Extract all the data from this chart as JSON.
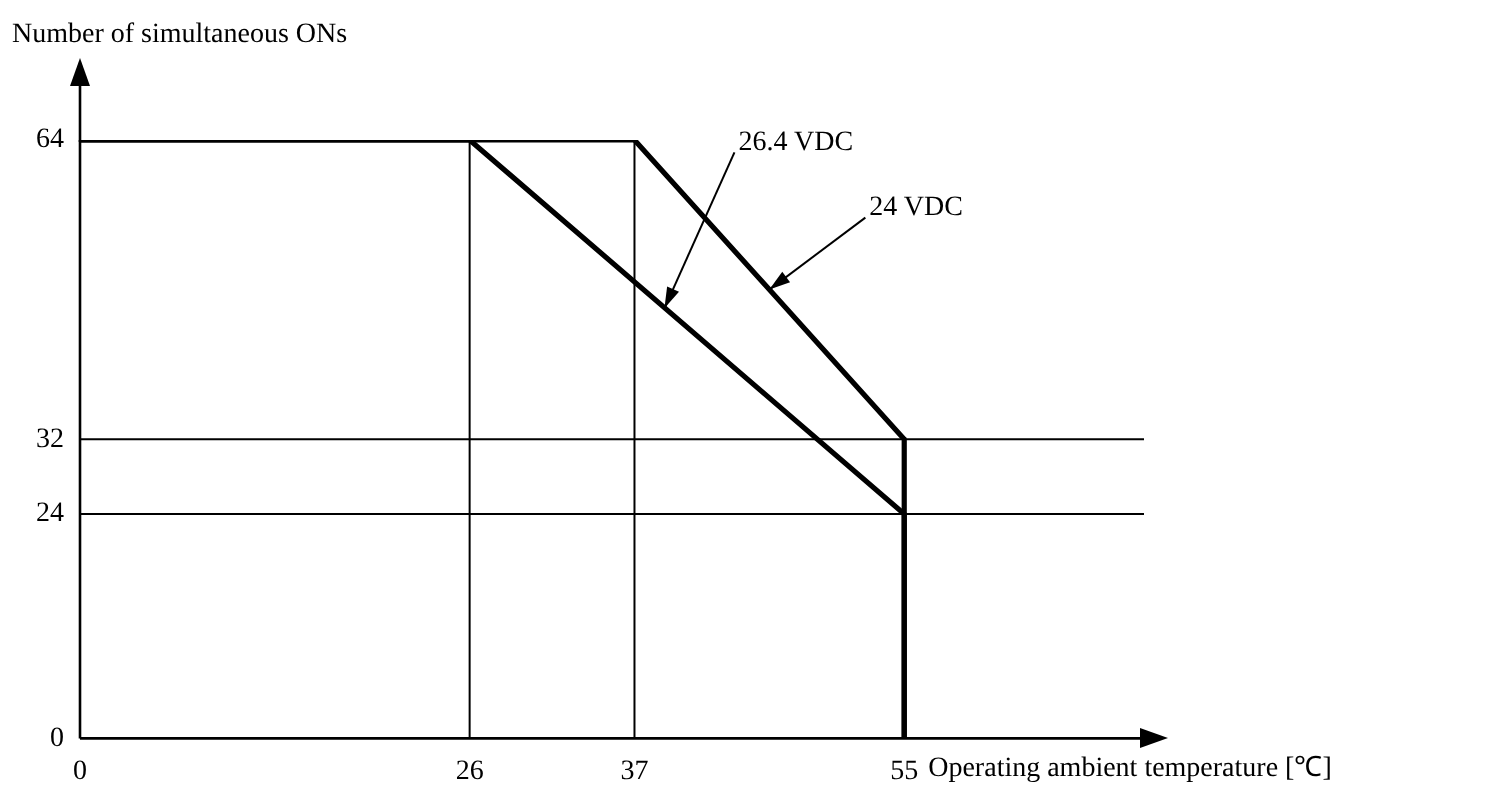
{
  "chart_data": {
    "type": "line",
    "ylabel": "Number of simultaneous ONs",
    "xlabel": "Operating ambient temperature [℃]",
    "xlim": [
      0,
      71
    ],
    "xticks": [
      0,
      26,
      37,
      55
    ],
    "ylim": [
      0,
      64
    ],
    "yticks": [
      0,
      24,
      32,
      64
    ],
    "grid": false,
    "legend": false,
    "marker": "none",
    "line_style": "solid",
    "series": [
      {
        "color": "#000000",
        "x": [
          0,
          37,
          55,
          55
        ],
        "values": [
          64,
          64,
          32,
          0
        ]
      },
      {
        "color": "#000000",
        "x": [
          0,
          26,
          55,
          55
        ],
        "values": [
          64,
          64,
          24,
          0
        ]
      }
    ],
    "ref_lines": [
      {
        "axis": "x",
        "value": 26,
        "color": "#000000"
      },
      {
        "axis": "x",
        "value": 37,
        "color": "#000000"
      },
      {
        "axis": "y",
        "value": 32,
        "color": "#000000"
      },
      {
        "axis": "y",
        "value": 24,
        "color": "#000000"
      }
    ],
    "annotations": [
      {
        "text": "26.4 VDC",
        "x": 39,
        "y": 46
      },
      {
        "text": "24 VDC",
        "x": 46,
        "y": 48
      }
    ]
  }
}
